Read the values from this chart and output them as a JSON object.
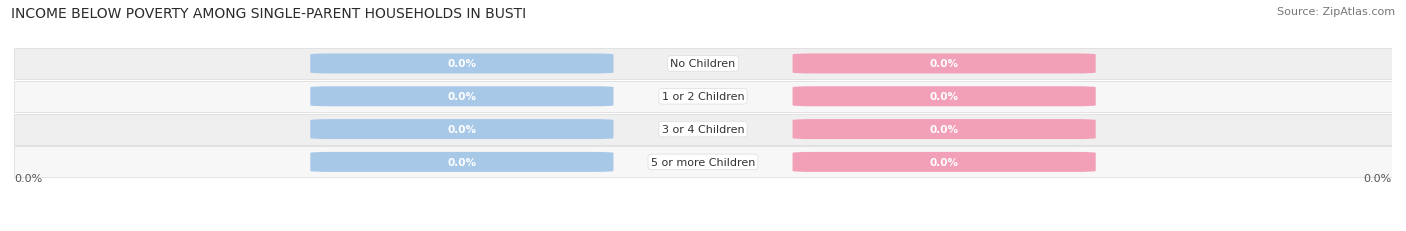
{
  "title": "INCOME BELOW POVERTY AMONG SINGLE-PARENT HOUSEHOLDS IN BUSTI",
  "source": "Source: ZipAtlas.com",
  "categories": [
    "No Children",
    "1 or 2 Children",
    "3 or 4 Children",
    "5 or more Children"
  ],
  "father_values": [
    0.0,
    0.0,
    0.0,
    0.0
  ],
  "mother_values": [
    0.0,
    0.0,
    0.0,
    0.0
  ],
  "father_color": "#a8c8e8",
  "mother_color": "#f2a0b8",
  "row_bg_colors": [
    "#efefef",
    "#f7f7f7",
    "#efefef",
    "#f7f7f7"
  ],
  "row_border_color": "#d8d8d8",
  "bar_height": 0.55,
  "title_fontsize": 10,
  "source_fontsize": 8,
  "axis_label_left": "0.0%",
  "axis_label_right": "0.0%",
  "background_color": "#ffffff",
  "label_text_color": "#ffffff",
  "category_text_color": "#333333",
  "category_fontsize": 8,
  "value_fontsize": 7.5
}
